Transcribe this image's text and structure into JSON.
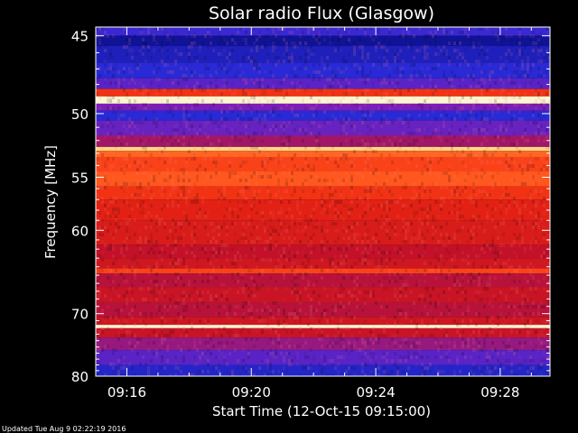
{
  "chart_data": {
    "type": "heatmap",
    "title": "Solar radio Flux (Glasgow)",
    "xlabel": "Start Time (12-Oct-15 09:15:00)",
    "ylabel": "Frequency [MHz]",
    "x_ticks": [
      "09:16",
      "09:20",
      "09:24",
      "09:28"
    ],
    "x_tick_minutes": [
      1,
      5,
      9,
      13
    ],
    "xlim_minutes": [
      0,
      14.6
    ],
    "y_ticks": [
      45,
      50,
      55,
      60,
      70,
      80
    ],
    "ylim": [
      44.5,
      80
    ],
    "y_scale": "reciprocal",
    "grid": false,
    "legend": "none",
    "colormap": [
      "#0b0f8a",
      "#2a2ad8",
      "#7a1fb8",
      "#c0102a",
      "#e82410",
      "#ff4a1a",
      "#ff8a30",
      "#ffd070",
      "#fff4d0"
    ],
    "frequency_bands": [
      {
        "f_start": 44.5,
        "f_end": 45.0,
        "level": 0.15
      },
      {
        "f_start": 45.0,
        "f_end": 45.6,
        "level": 0.02
      },
      {
        "f_start": 45.6,
        "f_end": 46.6,
        "level": 0.08
      },
      {
        "f_start": 46.6,
        "f_end": 47.6,
        "level": 0.12
      },
      {
        "f_start": 47.6,
        "f_end": 48.3,
        "level": 0.2
      },
      {
        "f_start": 48.3,
        "f_end": 48.8,
        "level": 0.55
      },
      {
        "f_start": 48.8,
        "f_end": 49.3,
        "level": 1.0
      },
      {
        "f_start": 49.3,
        "f_end": 49.8,
        "level": 0.25
      },
      {
        "f_start": 49.8,
        "f_end": 50.5,
        "level": 0.12
      },
      {
        "f_start": 50.5,
        "f_end": 51.6,
        "level": 0.22
      },
      {
        "f_start": 51.6,
        "f_end": 52.5,
        "level": 0.32
      },
      {
        "f_start": 52.5,
        "f_end": 52.8,
        "level": 0.9
      },
      {
        "f_start": 52.8,
        "f_end": 53.3,
        "level": 0.68
      },
      {
        "f_start": 53.3,
        "f_end": 54.5,
        "level": 0.6
      },
      {
        "f_start": 54.5,
        "f_end": 55.8,
        "level": 0.65
      },
      {
        "f_start": 55.8,
        "f_end": 57.0,
        "level": 0.55
      },
      {
        "f_start": 57.0,
        "f_end": 59.0,
        "level": 0.48
      },
      {
        "f_start": 59.0,
        "f_end": 61.5,
        "level": 0.45
      },
      {
        "f_start": 61.5,
        "f_end": 63.0,
        "level": 0.38
      },
      {
        "f_start": 63.0,
        "f_end": 64.2,
        "level": 0.42
      },
      {
        "f_start": 64.2,
        "f_end": 64.8,
        "level": 0.6
      },
      {
        "f_start": 64.8,
        "f_end": 66.5,
        "level": 0.36
      },
      {
        "f_start": 66.5,
        "f_end": 68.5,
        "level": 0.4
      },
      {
        "f_start": 68.5,
        "f_end": 70.5,
        "level": 0.36
      },
      {
        "f_start": 70.5,
        "f_end": 71.6,
        "level": 0.42
      },
      {
        "f_start": 71.6,
        "f_end": 72.1,
        "level": 1.0
      },
      {
        "f_start": 72.1,
        "f_end": 73.5,
        "level": 0.4
      },
      {
        "f_start": 73.5,
        "f_end": 75.5,
        "level": 0.3
      },
      {
        "f_start": 75.5,
        "f_end": 78.0,
        "level": 0.2
      },
      {
        "f_start": 78.0,
        "f_end": 80.0,
        "level": 0.1
      }
    ]
  },
  "footer": {
    "updated": "Updated Tue Aug  9 02:22:19 2016"
  }
}
